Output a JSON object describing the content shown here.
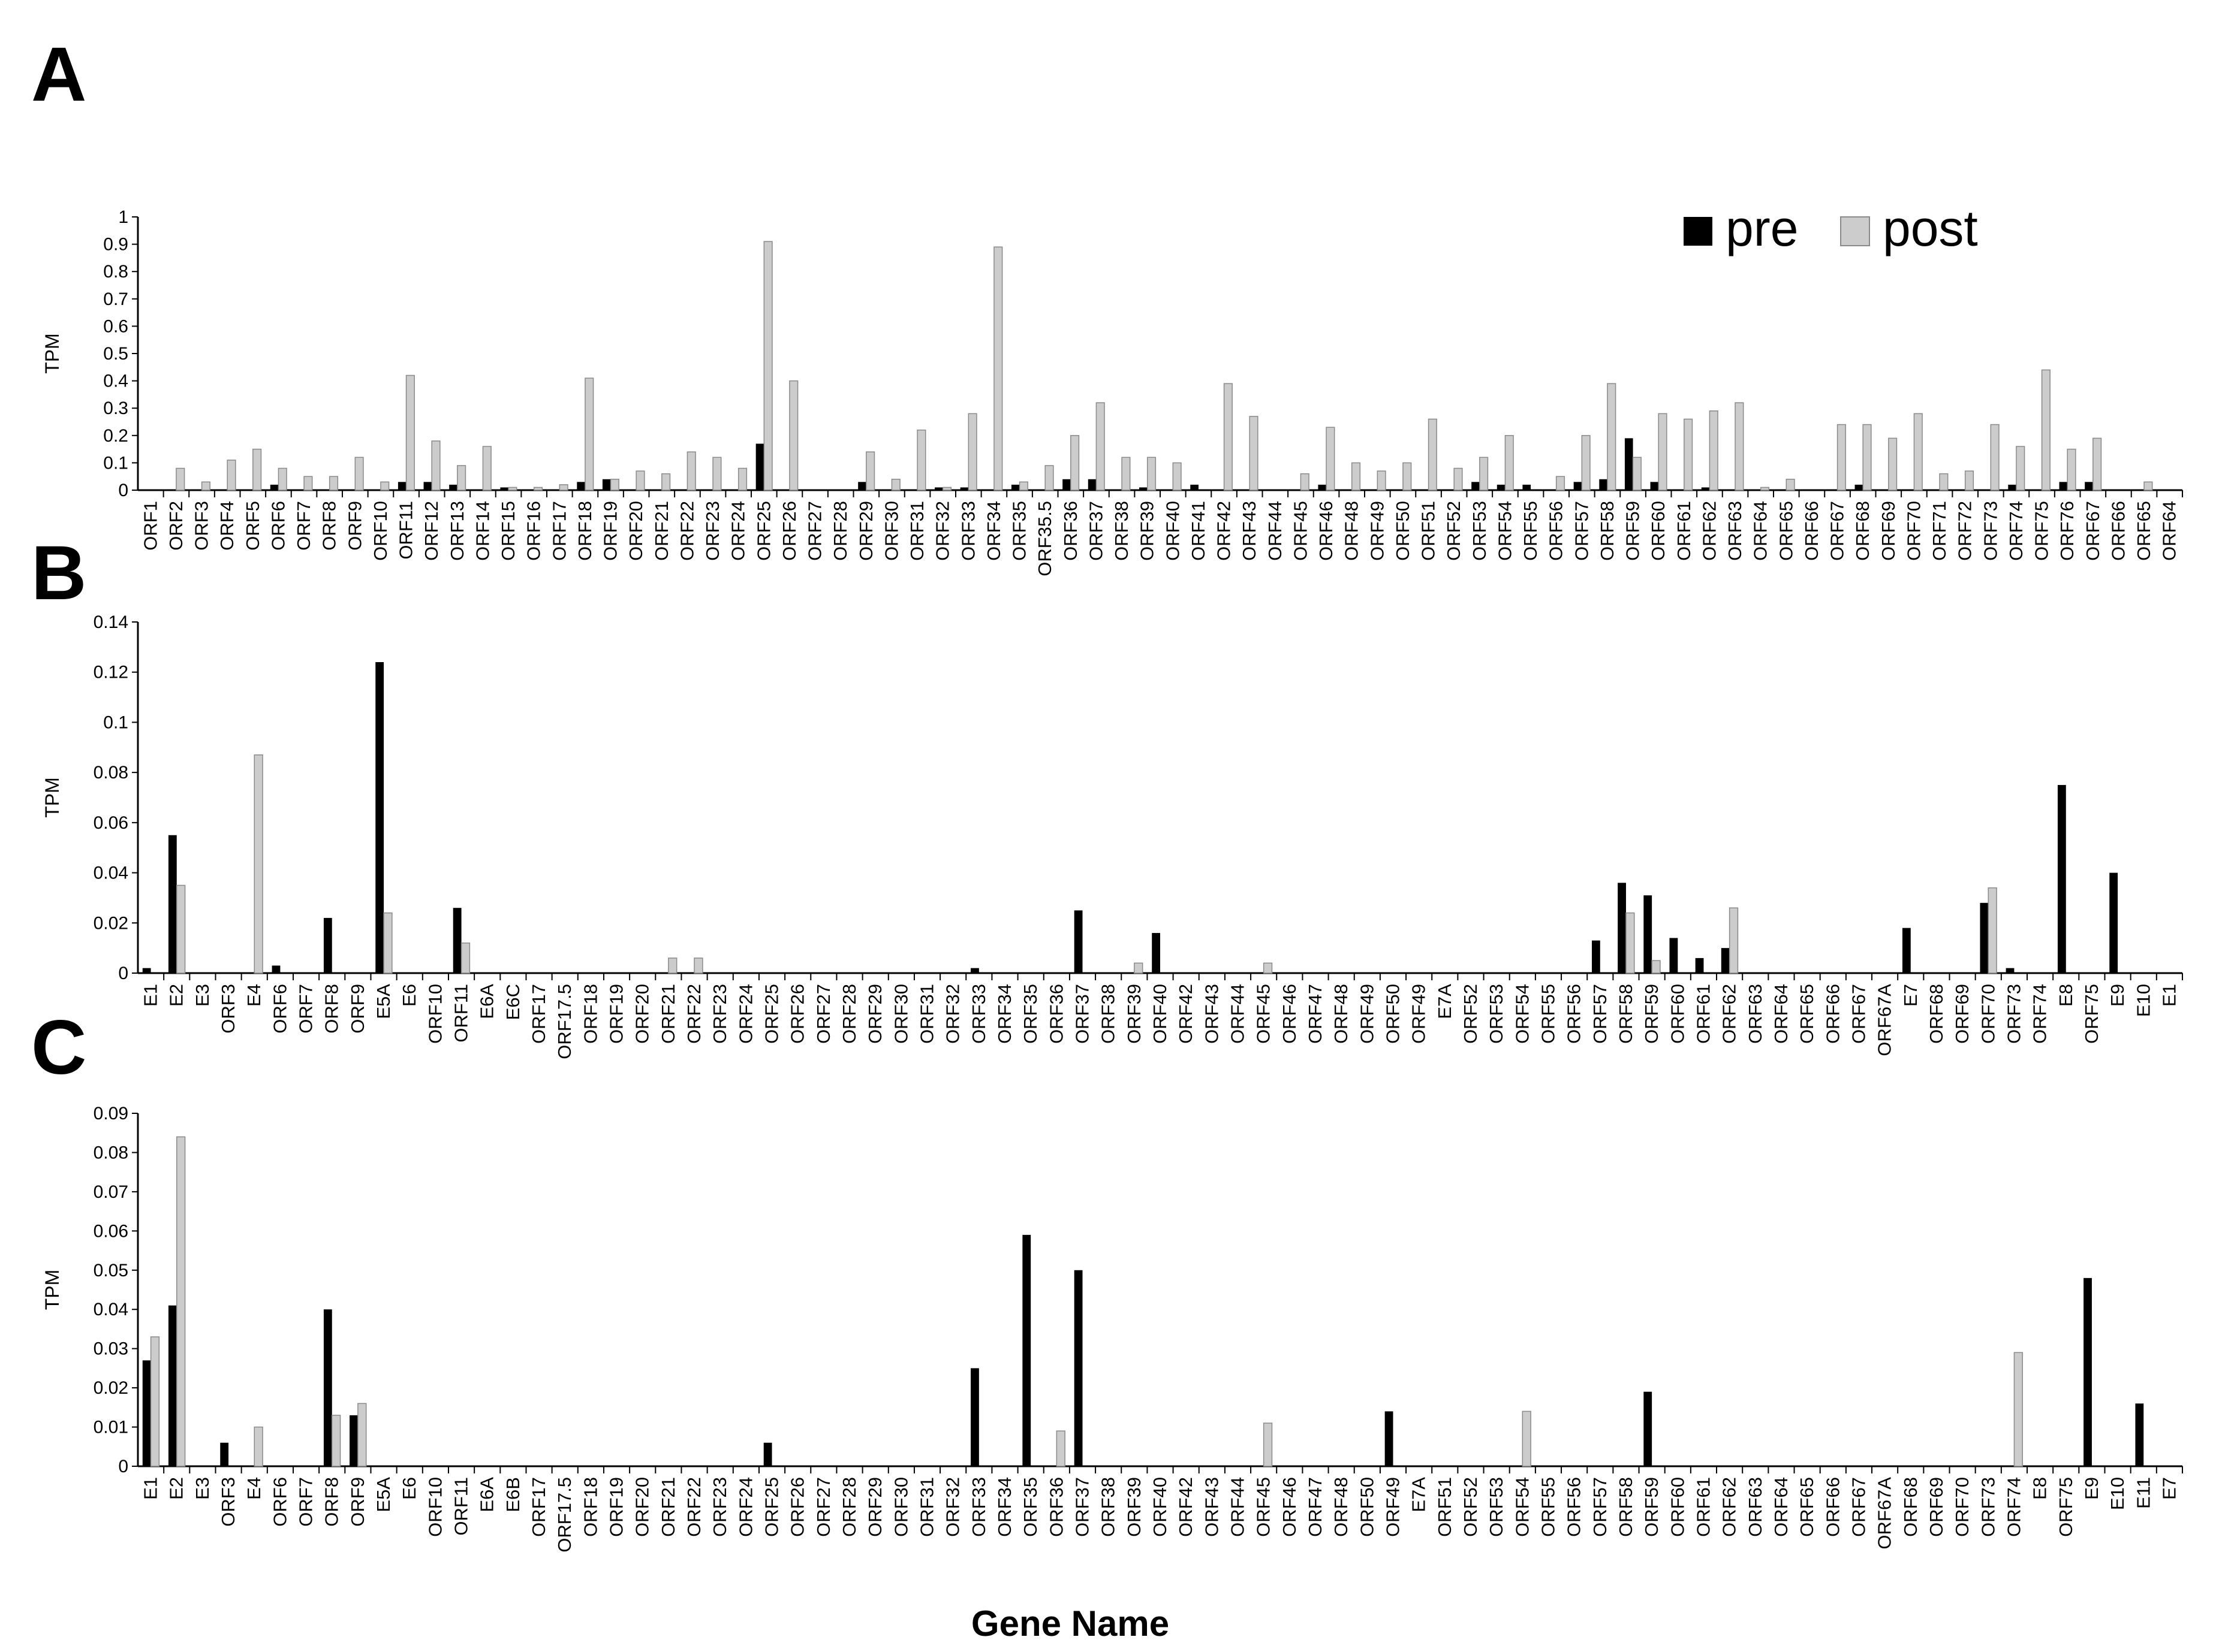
{
  "colors": {
    "pre": "#000000",
    "post": "#cccccc",
    "post_stroke": "#8a8a8a"
  },
  "legend": {
    "pre": "pre",
    "post": "post"
  },
  "x_title": "Gene Name",
  "chart_data": [
    {
      "panel": "A",
      "type": "bar",
      "ylabel": "TPM",
      "ylim": [
        0,
        1
      ],
      "yticks": [
        0,
        0.1,
        0.2,
        0.3,
        0.4,
        0.5,
        0.6,
        0.7,
        0.8,
        0.9,
        1
      ],
      "categories": [
        "ORF1",
        "ORF2",
        "ORF3",
        "ORF4",
        "ORF5",
        "ORF6",
        "ORF7",
        "ORF8",
        "ORF9",
        "ORF10",
        "ORF11",
        "ORF12",
        "ORF13",
        "ORF14",
        "ORF15",
        "ORF16",
        "ORF17",
        "ORF18",
        "ORF19",
        "ORF20",
        "ORF21",
        "ORF22",
        "ORF23",
        "ORF24",
        "ORF25",
        "ORF26",
        "ORF27",
        "ORF28",
        "ORF29",
        "ORF30",
        "ORF31",
        "ORF32",
        "ORF33",
        "ORF34",
        "ORF35",
        "ORF35.5",
        "ORF36",
        "ORF37",
        "ORF38",
        "ORF39",
        "ORF40",
        "ORF41",
        "ORF42",
        "ORF43",
        "ORF44",
        "ORF45",
        "ORF46",
        "ORF48",
        "ORF49",
        "ORF50",
        "ORF51",
        "ORF52",
        "ORF53",
        "ORF54",
        "ORF55",
        "ORF56",
        "ORF57",
        "ORF58",
        "ORF59",
        "ORF60",
        "ORF61",
        "ORF62",
        "ORF63",
        "ORF64",
        "ORF65",
        "ORF66",
        "ORF67",
        "ORF68",
        "ORF69",
        "ORF70",
        "ORF71",
        "ORF72",
        "ORF73",
        "ORF74",
        "ORF75",
        "ORF76",
        "ORF67",
        "ORF66",
        "ORF65",
        "ORF64"
      ],
      "series": [
        {
          "name": "pre",
          "values": [
            0,
            0,
            0,
            0,
            0,
            0.02,
            0,
            0,
            0,
            0,
            0.03,
            0.03,
            0.02,
            0,
            0.01,
            0,
            0,
            0.03,
            0.04,
            0,
            0,
            0,
            0,
            0,
            0.17,
            0,
            0,
            0,
            0.03,
            0,
            0,
            0.01,
            0.01,
            0,
            0.02,
            0,
            0.04,
            0.04,
            0,
            0.01,
            0,
            0.02,
            0,
            0,
            0,
            0,
            0.02,
            0,
            0,
            0,
            0,
            0,
            0.03,
            0.02,
            0.02,
            0,
            0.03,
            0.04,
            0.19,
            0.03,
            0,
            0.01,
            0,
            0,
            0,
            0,
            0,
            0.02,
            0,
            0,
            0,
            0,
            0,
            0.02,
            0,
            0.03,
            0.03,
            0,
            0,
            0
          ]
        },
        {
          "name": "post",
          "values": [
            0,
            0.08,
            0.03,
            0.11,
            0.15,
            0.08,
            0.05,
            0.05,
            0.12,
            0.03,
            0.42,
            0.18,
            0.09,
            0.16,
            0.01,
            0.01,
            0.02,
            0.41,
            0.04,
            0.07,
            0.06,
            0.14,
            0.12,
            0.08,
            0.91,
            0.4,
            0,
            0,
            0.14,
            0.04,
            0.22,
            0.01,
            0.28,
            0.89,
            0.03,
            0.09,
            0.2,
            0.32,
            0.12,
            0.12,
            0.1,
            0,
            0.39,
            0.27,
            0,
            0.06,
            0.23,
            0.1,
            0.07,
            0.1,
            0.26,
            0.08,
            0.12,
            0.2,
            0,
            0.05,
            0.2,
            0.39,
            0.12,
            0.28,
            0.26,
            0.29,
            0.32,
            0.01,
            0.04,
            0,
            0.24,
            0.24,
            0.19,
            0.28,
            0.06,
            0.07,
            0.24,
            0.16,
            0.44,
            0.15,
            0.19,
            0,
            0.03,
            0
          ]
        }
      ]
    },
    {
      "panel": "B",
      "type": "bar",
      "ylabel": "TPM",
      "ylim": [
        0,
        0.14
      ],
      "yticks": [
        0,
        0.02,
        0.04,
        0.06,
        0.08,
        0.1,
        0.12,
        0.14
      ],
      "categories": [
        "E1",
        "E2",
        "E3",
        "ORF3",
        "E4",
        "ORF6",
        "ORF7",
        "ORF8",
        "ORF9",
        "E5A",
        "E6",
        "ORF10",
        "ORF11",
        "E6A",
        "E6C",
        "ORF17",
        "ORF17.5",
        "ORF18",
        "ORF19",
        "ORF20",
        "ORF21",
        "ORF22",
        "ORF23",
        "ORF24",
        "ORF25",
        "ORF26",
        "ORF27",
        "ORF28",
        "ORF29",
        "ORF30",
        "ORF31",
        "ORF32",
        "ORF33",
        "ORF34",
        "ORF35",
        "ORF36",
        "ORF37",
        "ORF38",
        "ORF39",
        "ORF40",
        "ORF42",
        "ORF43",
        "ORF44",
        "ORF45",
        "ORF46",
        "ORF47",
        "ORF48",
        "ORF49",
        "ORF50",
        "ORF49",
        "E7A",
        "ORF52",
        "ORF53",
        "ORF54",
        "ORF55",
        "ORF56",
        "ORF57",
        "ORF58",
        "ORF59",
        "ORF60",
        "ORF61",
        "ORF62",
        "ORF63",
        "ORF64",
        "ORF65",
        "ORF66",
        "ORF67",
        "ORF67A",
        "E7",
        "ORF68",
        "ORF69",
        "ORF70",
        "ORF73",
        "ORF74",
        "E8",
        "ORF75",
        "E9",
        "E10",
        "E1"
      ],
      "series": [
        {
          "name": "pre",
          "values": [
            0.002,
            0.055,
            0,
            0,
            0,
            0.003,
            0,
            0.022,
            0,
            0.124,
            0,
            0,
            0.026,
            0,
            0,
            0,
            0,
            0,
            0,
            0,
            0,
            0,
            0,
            0,
            0,
            0,
            0,
            0,
            0,
            0,
            0,
            0,
            0.002,
            0,
            0,
            0,
            0.025,
            0,
            0,
            0.016,
            0,
            0,
            0,
            0,
            0,
            0,
            0,
            0,
            0,
            0,
            0,
            0,
            0,
            0,
            0,
            0,
            0.013,
            0.036,
            0.031,
            0.014,
            0.006,
            0.01,
            0,
            0,
            0,
            0,
            0,
            0,
            0.018,
            0,
            0,
            0.028,
            0.002,
            0,
            0.075,
            0,
            0.04,
            0,
            0
          ]
        },
        {
          "name": "post",
          "values": [
            0,
            0.035,
            0,
            0,
            0.087,
            0,
            0,
            0,
            0,
            0.024,
            0,
            0,
            0.012,
            0,
            0,
            0,
            0,
            0,
            0,
            0,
            0.006,
            0.006,
            0,
            0,
            0,
            0,
            0,
            0,
            0,
            0,
            0,
            0,
            0,
            0,
            0,
            0,
            0,
            0,
            0.004,
            0,
            0,
            0,
            0,
            0.004,
            0,
            0,
            0,
            0,
            0,
            0,
            0,
            0,
            0,
            0,
            0,
            0,
            0,
            0.024,
            0.005,
            0,
            0,
            0.026,
            0,
            0,
            0,
            0,
            0,
            0,
            0,
            0,
            0,
            0.034,
            0,
            0,
            0,
            0,
            0,
            0,
            0
          ]
        }
      ]
    },
    {
      "panel": "C",
      "type": "bar",
      "ylabel": "TPM",
      "ylim": [
        0,
        0.09
      ],
      "yticks": [
        0,
        0.01,
        0.02,
        0.03,
        0.04,
        0.05,
        0.06,
        0.07,
        0.08,
        0.09
      ],
      "categories": [
        "E1",
        "E2",
        "E3",
        "ORF3",
        "E4",
        "ORF6",
        "ORF7",
        "ORF8",
        "ORF9",
        "E5A",
        "E6",
        "ORF10",
        "ORF11",
        "E6A",
        "E6B",
        "ORF17",
        "ORF17.5",
        "ORF18",
        "ORF19",
        "ORF20",
        "ORF21",
        "ORF22",
        "ORF23",
        "ORF24",
        "ORF25",
        "ORF26",
        "ORF27",
        "ORF28",
        "ORF29",
        "ORF30",
        "ORF31",
        "ORF32",
        "ORF33",
        "ORF34",
        "ORF35",
        "ORF36",
        "ORF37",
        "ORF38",
        "ORF39",
        "ORF40",
        "ORF42",
        "ORF43",
        "ORF44",
        "ORF45",
        "ORF46",
        "ORF47",
        "ORF48",
        "ORF50",
        "ORF49",
        "E7A",
        "ORF51",
        "ORF52",
        "ORF53",
        "ORF54",
        "ORF55",
        "ORF56",
        "ORF57",
        "ORF58",
        "ORF59",
        "ORF60",
        "ORF61",
        "ORF62",
        "ORF63",
        "ORF64",
        "ORF65",
        "ORF66",
        "ORF67",
        "ORF67A",
        "ORF68",
        "ORF69",
        "ORF70",
        "ORF73",
        "ORF74",
        "E8",
        "ORF75",
        "E9",
        "E10",
        "E11",
        "E7"
      ],
      "series": [
        {
          "name": "pre",
          "values": [
            0.027,
            0.041,
            0,
            0.006,
            0,
            0,
            0,
            0.04,
            0.013,
            0,
            0,
            0,
            0,
            0,
            0,
            0,
            0,
            0,
            0,
            0,
            0,
            0,
            0,
            0,
            0.006,
            0,
            0,
            0,
            0,
            0,
            0,
            0,
            0.025,
            0,
            0.059,
            0,
            0.05,
            0,
            0,
            0,
            0,
            0,
            0,
            0,
            0,
            0,
            0,
            0,
            0.014,
            0,
            0,
            0,
            0,
            0,
            0,
            0,
            0,
            0,
            0.019,
            0,
            0,
            0,
            0,
            0,
            0,
            0,
            0,
            0,
            0,
            0,
            0,
            0,
            0,
            0,
            0,
            0.048,
            0,
            0.016,
            0
          ]
        },
        {
          "name": "post",
          "values": [
            0.033,
            0.084,
            0,
            0,
            0.01,
            0,
            0,
            0.013,
            0.016,
            0,
            0,
            0,
            0,
            0,
            0,
            0,
            0,
            0,
            0,
            0,
            0,
            0,
            0,
            0,
            0,
            0,
            0,
            0,
            0,
            0,
            0,
            0,
            0,
            0,
            0,
            0.009,
            0,
            0,
            0,
            0,
            0,
            0,
            0,
            0.011,
            0,
            0,
            0,
            0,
            0,
            0,
            0,
            0,
            0,
            0.014,
            0,
            0,
            0,
            0,
            0,
            0,
            0,
            0,
            0,
            0,
            0,
            0,
            0,
            0,
            0,
            0,
            0,
            0,
            0.029,
            0,
            0,
            0,
            0,
            0,
            0
          ]
        }
      ]
    }
  ]
}
